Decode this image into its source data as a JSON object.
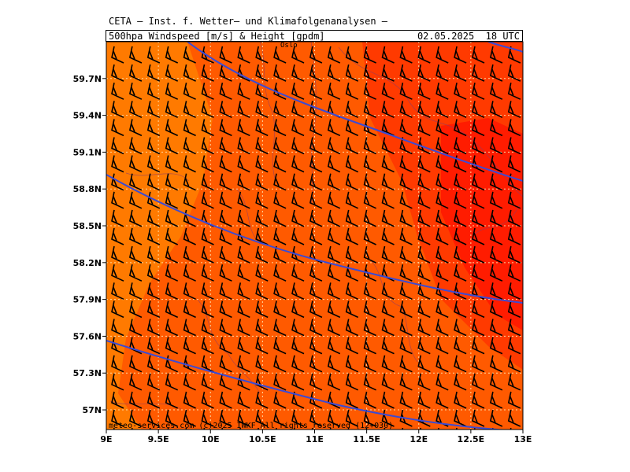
{
  "header": {
    "title": "CETA — Inst. f. Wetter— und Klimafolgenanalysen —",
    "subtitle": "500hpa_Windspeed_[m/s]_&_Height_[gpdm]",
    "datetime": "02.05.2025  18 UTC"
  },
  "map": {
    "lon_labels": [
      "9E",
      "9.5E",
      "10E",
      "10.5E",
      "11E",
      "11.5E",
      "12E",
      "12.5E",
      "13E"
    ],
    "lon_values": [
      9,
      9.5,
      10,
      10.5,
      11,
      11.5,
      12,
      12.5,
      13
    ],
    "lat_labels": [
      "57N",
      "57.3N",
      "57.6N",
      "57.9N",
      "58.2N",
      "58.5N",
      "58.8N",
      "59.1N",
      "59.4N",
      "59.7N"
    ],
    "lat_values": [
      57.0,
      57.3,
      57.6,
      57.9,
      58.2,
      58.5,
      58.8,
      59.1,
      59.4,
      59.7
    ],
    "lon_range": [
      9,
      13
    ],
    "lat_range": [
      56.84,
      60.0
    ],
    "city_label": "Oslo",
    "copyright": "meteo-services.com  (c)2025 IWKF  All rights reserved (12+030)",
    "colors": {
      "light_orange": "#ff7a00",
      "orange": "#ff5a00",
      "red_orange": "#ff3a00",
      "red": "#ff1c00",
      "height_contour": "#3a4bd6",
      "border": "#8a3a6a",
      "wind_barb": "#000000",
      "grid": "#ffd9a0"
    }
  }
}
